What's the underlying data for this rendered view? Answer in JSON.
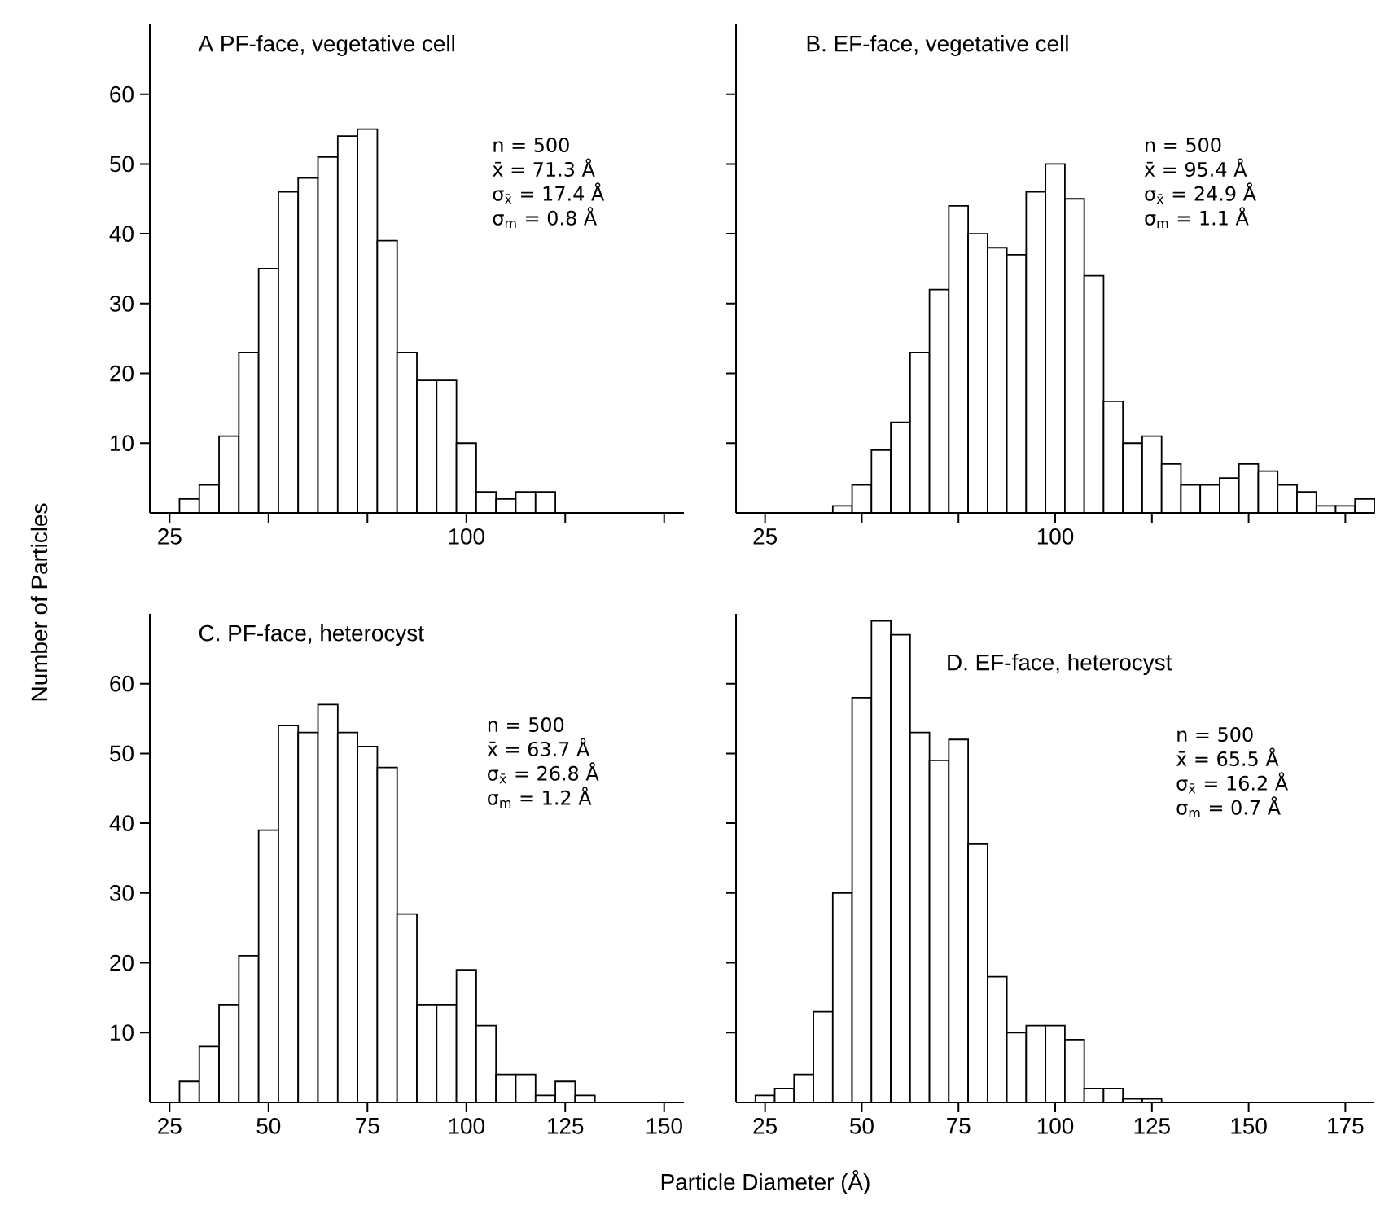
{
  "chart_data": [
    {
      "type": "histogram",
      "title": "A PF-face, vegetative cell",
      "ylabel": "Number of Particles",
      "bins": [
        27.5,
        32.5,
        37.5,
        42.5,
        47.5,
        52.5,
        57.5,
        62.5,
        67.5,
        72.5,
        77.5,
        82.5,
        87.5,
        92.5,
        97.5,
        102.5,
        107.5,
        112.5,
        117.5,
        122.5
      ],
      "values": [
        2,
        4,
        11,
        23,
        35,
        46,
        48,
        51,
        54,
        55,
        39,
        23,
        19,
        19,
        10,
        3,
        2,
        3,
        3
      ],
      "annotations": [
        "n = 500",
        "x̄ = 71.3 Å",
        "σ$_{x̄}$ = 17.4 Å",
        "σ$_{m}$ = 0.8 Å"
      ],
      "xlim": [
        20,
        155
      ],
      "xticks": [
        25,
        {
          "value": 50,
          "label": null
        },
        {
          "value": 75,
          "label": null
        },
        100,
        {
          "value": 125,
          "label": null
        },
        {
          "value": 150,
          "label": null
        }
      ],
      "ylim": [
        0,
        70
      ],
      "yticks": [
        10,
        20,
        30,
        40,
        50,
        60
      ]
    },
    {
      "type": "histogram",
      "title": "B. EF-face, vegetative cell",
      "bins": [
        42.5,
        47.5,
        52.5,
        57.5,
        62.5,
        67.5,
        72.5,
        77.5,
        82.5,
        87.5,
        92.5,
        97.5,
        102.5,
        107.5,
        112.5,
        117.5,
        122.5,
        127.5,
        132.5,
        137.5,
        142.5,
        147.5,
        152.5,
        157.5,
        162.5,
        167.5,
        172.5,
        177.5,
        182.5
      ],
      "values": [
        1,
        4,
        9,
        13,
        23,
        32,
        44,
        40,
        38,
        37,
        46,
        50,
        45,
        34,
        16,
        10,
        11,
        7,
        4,
        4,
        5,
        7,
        6,
        4,
        3,
        1,
        1,
        2
      ],
      "annotations": [
        "n = 500",
        "x̄ = 95.4 Å",
        "σ$_{x̄}$ = 24.9 Å",
        "σ$_{m}$ = 1.1 Å"
      ],
      "xlim": [
        17.5,
        182.5
      ],
      "xticks": [
        25,
        {
          "value": 50,
          "label": null
        },
        {
          "value": 75,
          "label": null
        },
        100,
        {
          "value": 125,
          "label": null
        },
        {
          "value": 150,
          "label": null
        },
        {
          "value": 175,
          "label": null
        }
      ],
      "ylim": [
        0,
        70
      ],
      "yticks": [
        10,
        20,
        30,
        40,
        50,
        60
      ],
      "tick_labels": "x"
    },
    {
      "type": "histogram",
      "title": "C. PF-face, heterocyst",
      "xlabel": "Particle Diameter (Å)",
      "bins": [
        27.5,
        32.5,
        37.5,
        42.5,
        47.5,
        52.5,
        57.5,
        62.5,
        67.5,
        72.5,
        77.5,
        82.5,
        87.5,
        92.5,
        97.5,
        102.5,
        107.5,
        112.5,
        117.5,
        122.5,
        127.5,
        132.5
      ],
      "values": [
        3,
        8,
        14,
        21,
        39,
        54,
        53,
        57,
        53,
        51,
        48,
        27,
        14,
        14,
        19,
        11,
        4,
        4,
        1,
        3,
        1
      ],
      "annotations": [
        "n = 500",
        "x̄ = 63.7 Å",
        "σ$_{x̄}$ = 26.8 Å",
        "σ$_{m}$ = 1.2 Å"
      ],
      "xlim": [
        20,
        155
      ],
      "xticks": [
        25,
        50,
        75,
        100,
        125,
        150
      ],
      "ylim": [
        0,
        70
      ],
      "yticks": [
        10,
        20,
        30,
        40,
        50,
        60
      ]
    },
    {
      "type": "histogram",
      "title": "D. EF-face, heterocyst",
      "bins": [
        22.5,
        27.5,
        32.5,
        37.5,
        42.5,
        47.5,
        52.5,
        57.5,
        62.5,
        67.5,
        72.5,
        77.5,
        82.5,
        87.5,
        92.5,
        97.5,
        102.5,
        107.5,
        112.5,
        117.5,
        122.5,
        127.5
      ],
      "values": [
        1,
        2,
        4,
        13,
        30,
        58,
        69,
        67,
        53,
        49,
        52,
        37,
        18,
        10,
        11,
        11,
        9,
        2,
        2,
        0.5,
        0.5
      ],
      "annotations": [
        "n = 500",
        "x̄ = 65.5 Å",
        "σ$_{x̄}$ = 16.2 Å",
        "σ$_{m}$ = 0.7 Å"
      ],
      "xlim": [
        17.5,
        182.5
      ],
      "xticks": [
        25,
        50,
        75,
        100,
        125,
        150,
        175
      ],
      "ylim": [
        0,
        70
      ],
      "yticks": [
        10,
        20,
        30,
        40,
        50,
        60
      ],
      "tick_labels": "x"
    }
  ]
}
